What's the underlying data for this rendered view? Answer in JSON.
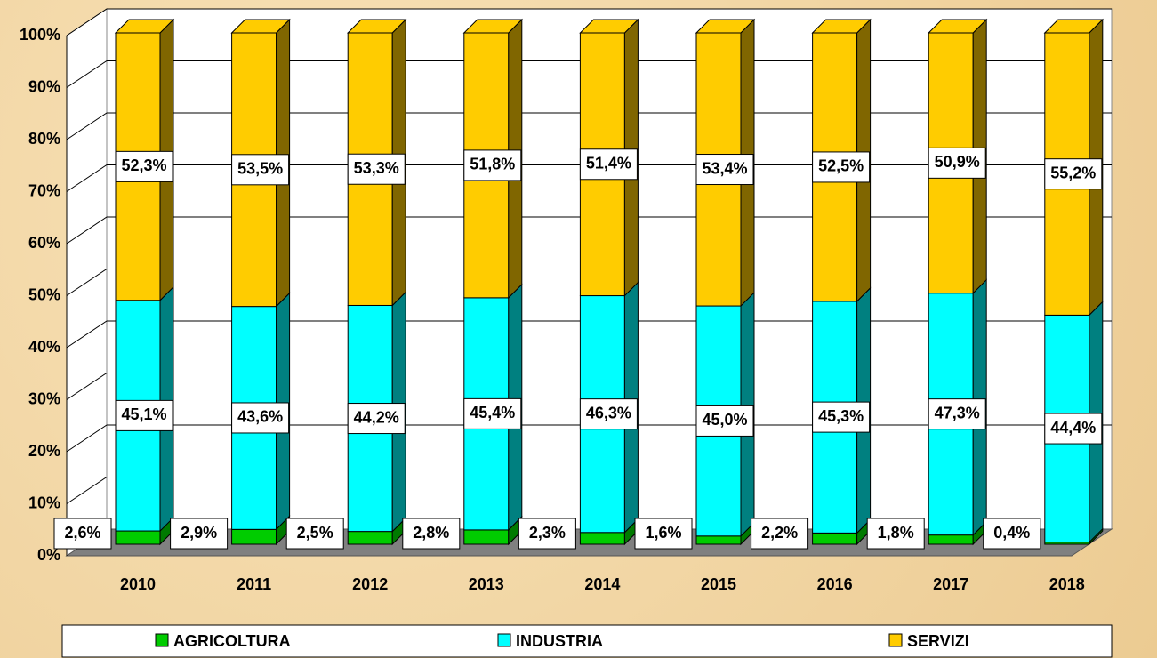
{
  "chart_data": {
    "type": "stacked_bar_3d",
    "categories": [
      "2010",
      "2011",
      "2012",
      "2013",
      "2014",
      "2015",
      "2016",
      "2017",
      "2018"
    ],
    "series": [
      {
        "name": "AGRICOLTURA",
        "color": "#00cc00",
        "side": "#007a00",
        "values": [
          2.6,
          2.9,
          2.5,
          2.8,
          2.3,
          1.6,
          2.2,
          1.8,
          0.4
        ],
        "value_labels": [
          "2,6%",
          "2,9%",
          "2,5%",
          "2,8%",
          "2,3%",
          "1,6%",
          "2,2%",
          "1,8%",
          "0,4%"
        ]
      },
      {
        "name": "INDUSTRIA",
        "color": "#00ffff",
        "side": "#008080",
        "values": [
          45.1,
          43.6,
          44.2,
          45.4,
          46.3,
          45.0,
          45.3,
          47.3,
          44.4
        ],
        "value_labels": [
          "45,1%",
          "43,6%",
          "44,2%",
          "45,4%",
          "46,3%",
          "45,0%",
          "45,3%",
          "47,3%",
          "44,4%"
        ]
      },
      {
        "name": "SERVIZI",
        "color": "#ffcc00",
        "side": "#806600",
        "values": [
          52.3,
          53.5,
          53.3,
          51.8,
          51.4,
          53.4,
          52.5,
          50.9,
          55.2
        ],
        "value_labels": [
          "52,3%",
          "53,5%",
          "53,3%",
          "51,8%",
          "51,4%",
          "53,4%",
          "52,5%",
          "50,9%",
          "55,2%"
        ]
      }
    ],
    "ylim": [
      0,
      100
    ],
    "yticks": [
      {
        "value": 0,
        "label": "0%"
      },
      {
        "value": 10,
        "label": "10%"
      },
      {
        "value": 20,
        "label": "20%"
      },
      {
        "value": 30,
        "label": "30%"
      },
      {
        "value": 40,
        "label": "40%"
      },
      {
        "value": 50,
        "label": "50%"
      },
      {
        "value": 60,
        "label": "60%"
      },
      {
        "value": 70,
        "label": "70%"
      },
      {
        "value": 80,
        "label": "80%"
      },
      {
        "value": 90,
        "label": "90%"
      },
      {
        "value": 100,
        "label": "100%"
      }
    ],
    "grid": true,
    "legend": "bottom"
  }
}
